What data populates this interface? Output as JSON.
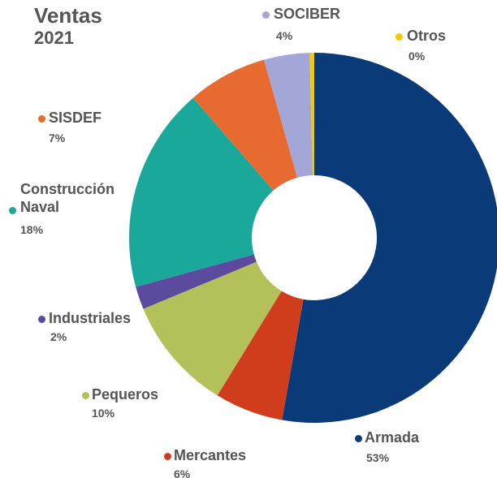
{
  "chart_data": {
    "type": "donut",
    "title": "Ventas",
    "subtitle": "2021",
    "categories": [
      "Armada",
      "Mercantes",
      "Pequeros",
      "Industriales",
      "Construcción Naval",
      "SISDEF",
      "SOCIBER",
      "Otros"
    ],
    "values": [
      53,
      6,
      10,
      2,
      18,
      7,
      4,
      0.4
    ],
    "value_labels": [
      "53%",
      "6%",
      "10%",
      "2%",
      "18%",
      "7%",
      "4%",
      "0%"
    ],
    "colors": [
      "#0b3a78",
      "#cf3d1d",
      "#b4c05a",
      "#5b4a9d",
      "#1aa89b",
      "#e76a31",
      "#a2a7d8",
      "#f5c800"
    ]
  }
}
